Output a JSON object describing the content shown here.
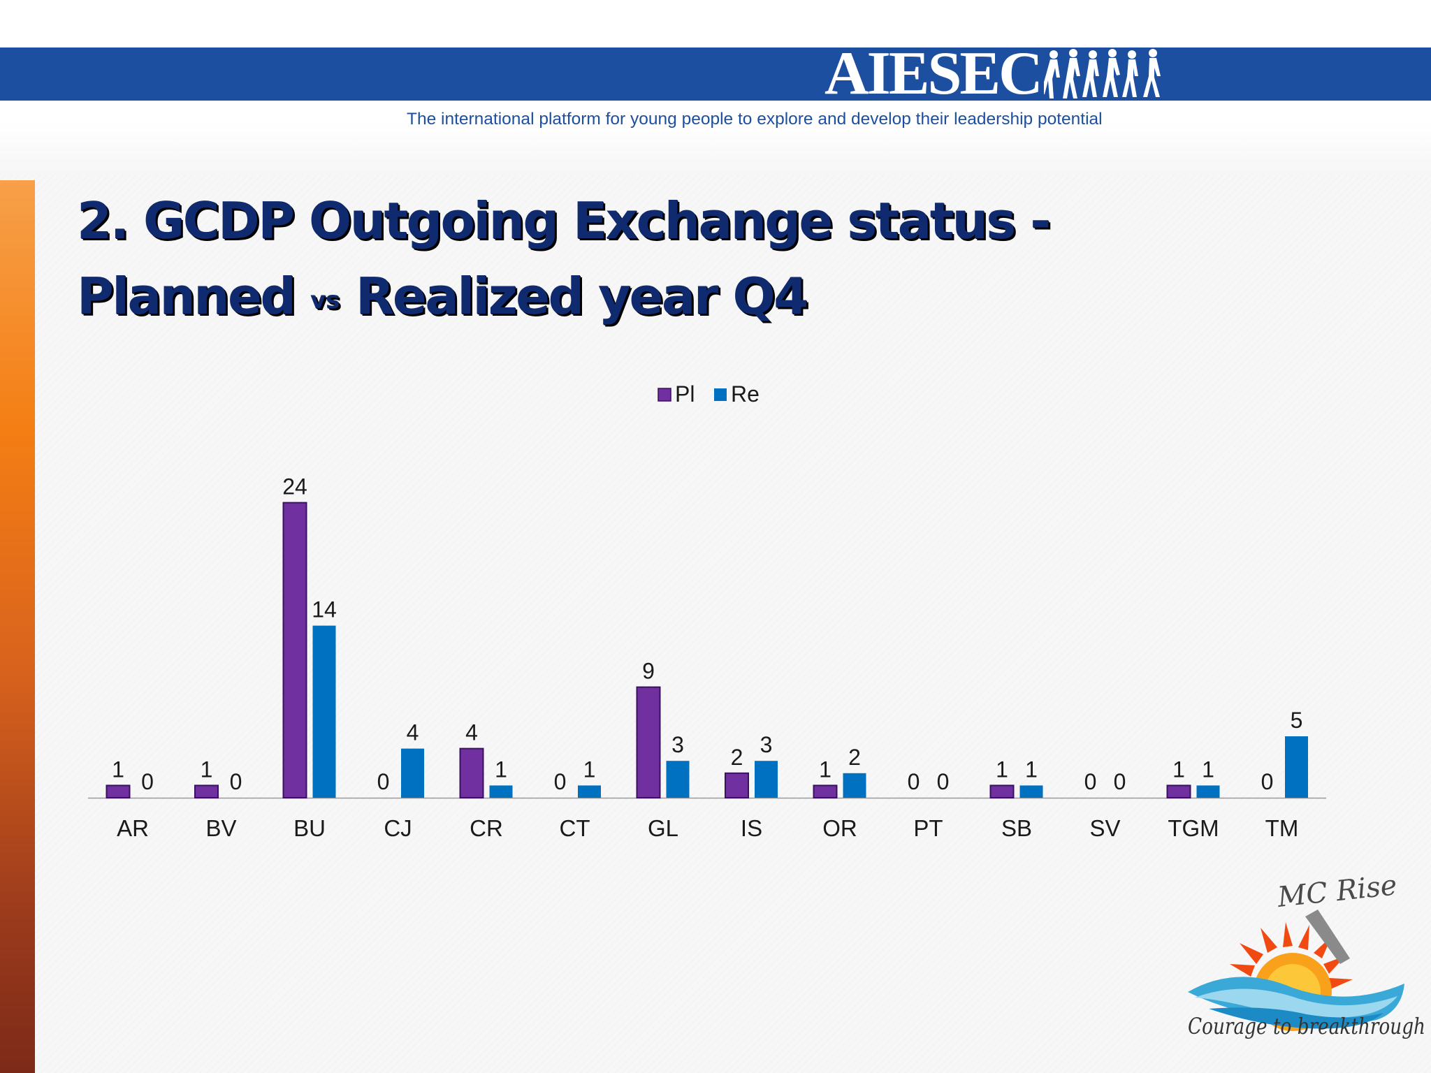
{
  "header": {
    "brand": "AIESEC",
    "tagline": "The international platform for young people to explore and develop their leadership potential"
  },
  "slide": {
    "title_line1": "2. GCDP Outgoing Exchange status -",
    "title_line2_start": "Planned",
    "title_vs": "vs",
    "title_line2_end": "Realized year Q4"
  },
  "chart_data": {
    "type": "bar",
    "categories": [
      "AR",
      "BV",
      "BU",
      "CJ",
      "CR",
      "CT",
      "GL",
      "IS",
      "OR",
      "PT",
      "SB",
      "SV",
      "TGM",
      "TM"
    ],
    "series": [
      {
        "name": "Pl",
        "values": [
          1,
          1,
          24,
          0,
          4,
          0,
          9,
          2,
          1,
          0,
          1,
          0,
          1,
          0
        ],
        "color": "#7030a0"
      },
      {
        "name": "Re",
        "values": [
          0,
          0,
          14,
          4,
          1,
          1,
          3,
          3,
          2,
          0,
          1,
          0,
          1,
          5
        ],
        "color": "#0070c0"
      }
    ],
    "ylim": [
      0,
      24
    ],
    "data_labels": true,
    "legend": "top-center",
    "grid": false,
    "xlabel": "",
    "ylabel": ""
  },
  "mc_logo": {
    "name": "MC Rise",
    "slogan": "Courage to breakthrough"
  },
  "colors": {
    "brand_blue": "#1c4fa0",
    "title_navy": "#0f2a6e",
    "accent_orange": "#f47e14"
  }
}
